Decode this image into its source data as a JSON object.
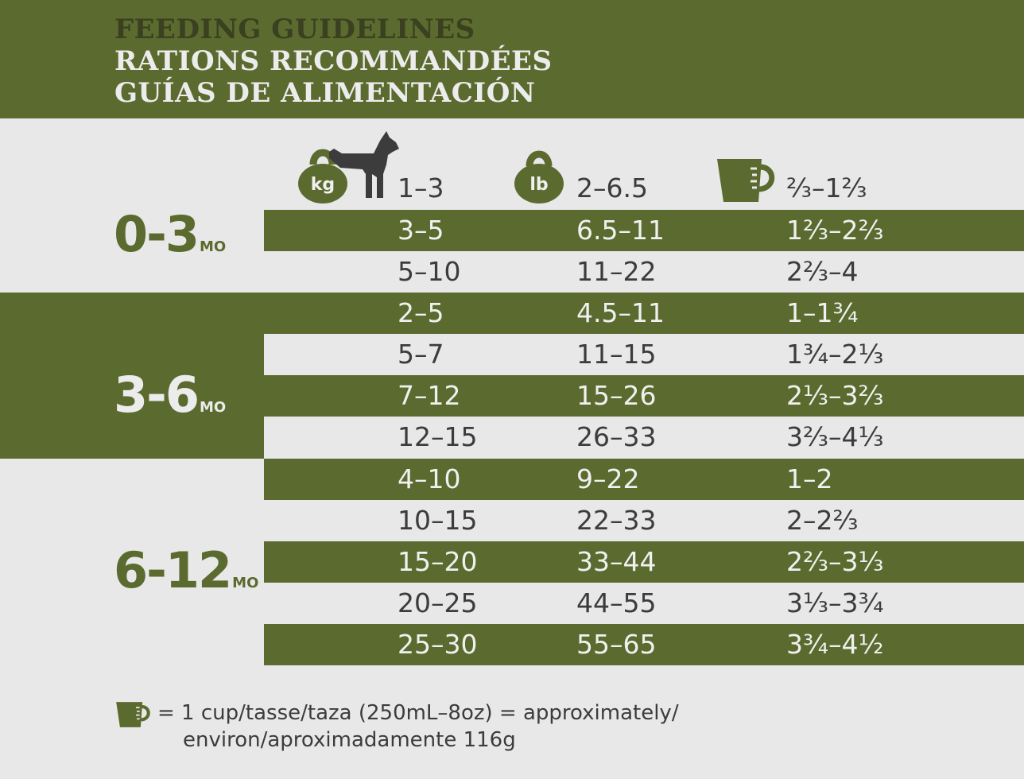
{
  "title": {
    "en": "FEEDING GUIDELINES",
    "fr": "RATIONS RECOMMANDÉES",
    "es": "GUÍAS DE ALIMENTACIÓN"
  },
  "colors": {
    "accent": "#5b6a2e",
    "light": "#e8e8e8",
    "text": "#3c3c3c"
  },
  "icons": {
    "kg": "kettlebell-kg-icon",
    "dog": "dog-icon",
    "lb": "kettlebell-lb-icon",
    "cup": "measuring-cup-icon"
  },
  "header_row": {
    "kg_label": "kg",
    "lb_label": "lb",
    "kg": "1–3",
    "lb": "2–6.5",
    "cup": "⅔–1⅔"
  },
  "groups": [
    {
      "age": "0-3",
      "unit": "MO"
    },
    {
      "age": "3-6",
      "unit": "MO"
    },
    {
      "age": "6-12",
      "unit": "MO"
    }
  ],
  "rows": [
    {
      "kg": "3–5",
      "lb": "6.5–11",
      "cup": "1⅔–2⅔"
    },
    {
      "kg": "5–10",
      "lb": "11–22",
      "cup": "2⅔–4"
    },
    {
      "kg": "2–5",
      "lb": "4.5–11",
      "cup": "1–1¾"
    },
    {
      "kg": "5–7",
      "lb": "11–15",
      "cup": "1¾–2⅓"
    },
    {
      "kg": "7–12",
      "lb": "15–26",
      "cup": "2⅓–3⅔"
    },
    {
      "kg": "12–15",
      "lb": "26–33",
      "cup": "3⅔–4⅓"
    },
    {
      "kg": "4–10",
      "lb": "9–22",
      "cup": "1–2"
    },
    {
      "kg": "10–15",
      "lb": "22–33",
      "cup": "2–2⅔"
    },
    {
      "kg": "15–20",
      "lb": "33–44",
      "cup": "2⅔–3⅓"
    },
    {
      "kg": "20–25",
      "lb": "44–55",
      "cup": "3⅓–3¾"
    },
    {
      "kg": "25–30",
      "lb": "55–65",
      "cup": "3¾–4½"
    }
  ],
  "footnote": {
    "line1": "= 1 cup/tasse/taza (250mL–8oz) = approximately/",
    "line2": "environ/aproximadamente 116g"
  }
}
